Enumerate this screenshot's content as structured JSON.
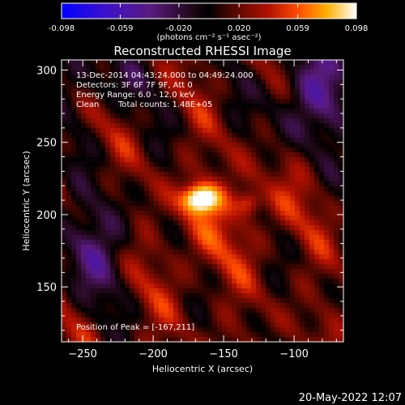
{
  "chart_data": {
    "type": "heatmap",
    "title": "Reconstructed RHESSI Image",
    "xlabel": "Heliocentric X (arcsec)",
    "ylabel": "Heliocentric Y (arcsec)",
    "xlim": [
      -265,
      -65
    ],
    "ylim": [
      112,
      307
    ],
    "x_ticks": [
      -250,
      -200,
      -150,
      -100
    ],
    "y_ticks": [
      150,
      200,
      250,
      300
    ],
    "colorbar": {
      "min": -0.098,
      "max": 0.098,
      "ticks": [
        "-0.098",
        "-0.059",
        "-0.020",
        "0.020",
        "0.059",
        "0.098"
      ],
      "unit_label": "(photons cm⁻² s⁻¹ asec⁻²)",
      "colors": [
        "#0000ff",
        "#5a1aa0",
        "#3a0a40",
        "#000000",
        "#5a0a00",
        "#b01000",
        "#ff4000",
        "#ffa000",
        "#ffffc0",
        "#ffffff"
      ]
    },
    "annotations": [
      "13-Dec-2014 04:43:24.000 to 04:49:24.000",
      "Detectors: 3F 6F 7F 9F, Att 0",
      "Energy Range: 6.0 - 12.0 keV",
      "Clean",
      "Total counts: 1.48E+05"
    ],
    "peak_label": "Position of Peak = [-167,211]",
    "peak": {
      "x": -167,
      "y": 211,
      "value": 0.098
    },
    "secondary_source": {
      "x": -132,
      "y": 208,
      "value": 0.045
    },
    "timestamp": "20-May-2022 12:07"
  }
}
